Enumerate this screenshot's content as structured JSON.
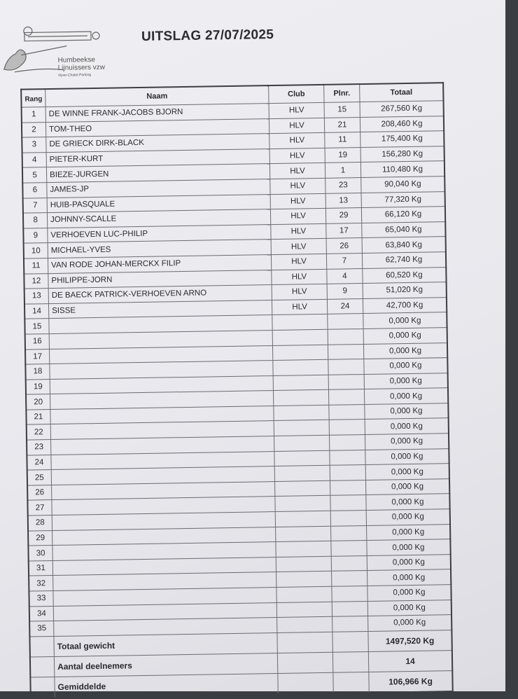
{
  "header": {
    "title": "UITSLAG 27/07/2025",
    "logo": {
      "line1": "Humbeekse",
      "line2": "Lijnuissers vzw",
      "line3": "Vijver-Chalet-Parking"
    }
  },
  "table": {
    "columns": {
      "rang": "Rang",
      "naam": "Naam",
      "club": "Club",
      "plnr": "Plnr.",
      "totaal": "Totaal"
    },
    "rows": [
      {
        "rang": "1",
        "naam": "DE WINNE FRANK-JACOBS BJORN",
        "club": "HLV",
        "plnr": "15",
        "totaal": "267,560 Kg"
      },
      {
        "rang": "2",
        "naam": "TOM-THEO",
        "club": "HLV",
        "plnr": "21",
        "totaal": "208,460 Kg"
      },
      {
        "rang": "3",
        "naam": "DE GRIECK DIRK-BLACK",
        "club": "HLV",
        "plnr": "11",
        "totaal": "175,400 Kg"
      },
      {
        "rang": "4",
        "naam": "PIETER-KURT",
        "club": "HLV",
        "plnr": "19",
        "totaal": "156,280 Kg"
      },
      {
        "rang": "5",
        "naam": "BIEZE-JURGEN",
        "club": "HLV",
        "plnr": "1",
        "totaal": "110,480 Kg"
      },
      {
        "rang": "6",
        "naam": "JAMES-JP",
        "club": "HLV",
        "plnr": "23",
        "totaal": "90,040 Kg"
      },
      {
        "rang": "7",
        "naam": "HUIB-PASQUALE",
        "club": "HLV",
        "plnr": "13",
        "totaal": "77,320 Kg"
      },
      {
        "rang": "8",
        "naam": "JOHNNY-SCALLE",
        "club": "HLV",
        "plnr": "29",
        "totaal": "66,120 Kg"
      },
      {
        "rang": "9",
        "naam": "VERHOEVEN LUC-PHILIP",
        "club": "HLV",
        "plnr": "17",
        "totaal": "65,040 Kg"
      },
      {
        "rang": "10",
        "naam": "MICHAEL-YVES",
        "club": "HLV",
        "plnr": "26",
        "totaal": "63,840 Kg"
      },
      {
        "rang": "11",
        "naam": "VAN RODE JOHAN-MERCKX FILIP",
        "club": "HLV",
        "plnr": "7",
        "totaal": "62,740 Kg"
      },
      {
        "rang": "12",
        "naam": "PHILIPPE-JORN",
        "club": "HLV",
        "plnr": "4",
        "totaal": "60,520 Kg"
      },
      {
        "rang": "13",
        "naam": "DE BAECK PATRICK-VERHOEVEN ARNO",
        "club": "HLV",
        "plnr": "9",
        "totaal": "51,020 Kg"
      },
      {
        "rang": "14",
        "naam": "SISSE",
        "club": "HLV",
        "plnr": "24",
        "totaal": "42,700 Kg"
      },
      {
        "rang": "15",
        "naam": "",
        "club": "",
        "plnr": "",
        "totaal": "0,000 Kg"
      },
      {
        "rang": "16",
        "naam": "",
        "club": "",
        "plnr": "",
        "totaal": "0,000 Kg"
      },
      {
        "rang": "17",
        "naam": "",
        "club": "",
        "plnr": "",
        "totaal": "0,000 Kg"
      },
      {
        "rang": "18",
        "naam": "",
        "club": "",
        "plnr": "",
        "totaal": "0,000 Kg"
      },
      {
        "rang": "19",
        "naam": "",
        "club": "",
        "plnr": "",
        "totaal": "0,000 Kg"
      },
      {
        "rang": "20",
        "naam": "",
        "club": "",
        "plnr": "",
        "totaal": "0,000 Kg"
      },
      {
        "rang": "21",
        "naam": "",
        "club": "",
        "plnr": "",
        "totaal": "0,000 Kg"
      },
      {
        "rang": "22",
        "naam": "",
        "club": "",
        "plnr": "",
        "totaal": "0,000 Kg"
      },
      {
        "rang": "23",
        "naam": "",
        "club": "",
        "plnr": "",
        "totaal": "0,000 Kg"
      },
      {
        "rang": "24",
        "naam": "",
        "club": "",
        "plnr": "",
        "totaal": "0,000 Kg"
      },
      {
        "rang": "25",
        "naam": "",
        "club": "",
        "plnr": "",
        "totaal": "0,000 Kg"
      },
      {
        "rang": "26",
        "naam": "",
        "club": "",
        "plnr": "",
        "totaal": "0,000 Kg"
      },
      {
        "rang": "27",
        "naam": "",
        "club": "",
        "plnr": "",
        "totaal": "0,000 Kg"
      },
      {
        "rang": "28",
        "naam": "",
        "club": "",
        "plnr": "",
        "totaal": "0,000 Kg"
      },
      {
        "rang": "29",
        "naam": "",
        "club": "",
        "plnr": "",
        "totaal": "0,000 Kg"
      },
      {
        "rang": "30",
        "naam": "",
        "club": "",
        "plnr": "",
        "totaal": "0,000 Kg"
      },
      {
        "rang": "31",
        "naam": "",
        "club": "",
        "plnr": "",
        "totaal": "0,000 Kg"
      },
      {
        "rang": "32",
        "naam": "",
        "club": "",
        "plnr": "",
        "totaal": "0,000 Kg"
      },
      {
        "rang": "33",
        "naam": "",
        "club": "",
        "plnr": "",
        "totaal": "0,000 Kg"
      },
      {
        "rang": "34",
        "naam": "",
        "club": "",
        "plnr": "",
        "totaal": "0,000 Kg"
      },
      {
        "rang": "35",
        "naam": "",
        "club": "",
        "plnr": "",
        "totaal": "0,000 Kg"
      }
    ],
    "summary": [
      {
        "label": "Totaal gewicht",
        "value": "1497,520 Kg"
      },
      {
        "label": "Aantal deelnemers",
        "value": "14"
      },
      {
        "label": "Gemiddelde",
        "value": "106,966 Kg"
      }
    ]
  }
}
